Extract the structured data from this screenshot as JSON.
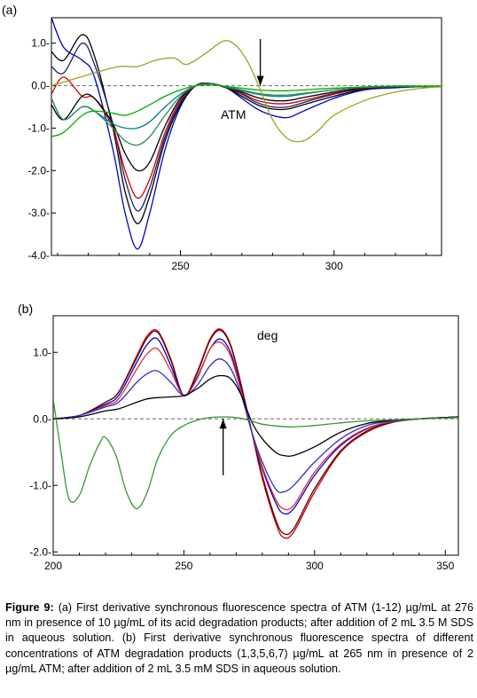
{
  "panels": [
    {
      "label": "(a)",
      "annotation": "ATM",
      "yticks": [
        1.0,
        0.0,
        -1.0,
        -2.0,
        -3.0,
        -4.0
      ],
      "ytick_labels": [
        "1.0-",
        "0.0-",
        "-1.0-",
        "-2.0-",
        "-3.0-",
        "-4.0-"
      ],
      "xticks": [
        250,
        300
      ],
      "xtick_labels": [
        "250",
        "300"
      ]
    },
    {
      "label": "(b)",
      "annotation": "deg",
      "yticks": [
        1.0,
        0.0,
        -1.0,
        -2.0
      ],
      "ytick_labels": [
        "1.0-",
        "0.0-",
        "-1.0-",
        "-2.0-"
      ],
      "xticks": [
        200,
        250,
        300,
        350
      ],
      "xtick_labels": [
        "200",
        "250",
        "300",
        "350"
      ]
    }
  ],
  "caption": {
    "label": "Figure 9:",
    "text": " (a) First derivative synchronous fluorescence spectra of ATM (1-12) µg/mL at 276 nm in presence of 10 µg/mL of its acid degradation products; after addition of 2 mL 3.5 M SDS in aqueous solution. (b) First derivative synchronous fluorescence spectra of different concentrations of ATM degradation products (1,3,5,6,7) µg/mL at 265 nm in presence of 2 µg/mL ATM; after addition of 2 mL 3.5 mM SDS in aqueous solution."
  },
  "chart_data": [
    {
      "type": "line",
      "title": "(a)",
      "xlabel": "",
      "ylabel": "",
      "xlim": [
        208,
        335
      ],
      "ylim": [
        -4.0,
        1.6
      ],
      "grid": false,
      "zero_line": "dashed",
      "arrow": {
        "x": 276,
        "y_from": 1.1,
        "y_to": 0.0,
        "direction": "down"
      },
      "series": [
        {
          "color": "#0000cc",
          "x": [
            208,
            212,
            218,
            222,
            228,
            232,
            236,
            240,
            245,
            250,
            255,
            260,
            265,
            270,
            275,
            280,
            285,
            290,
            300,
            310,
            320,
            330,
            335
          ],
          "y": [
            1.6,
            0.9,
            0.6,
            0.2,
            -1.5,
            -3.0,
            -3.85,
            -3.0,
            -1.5,
            -0.5,
            0.0,
            0.05,
            -0.05,
            -0.3,
            -0.55,
            -0.7,
            -0.75,
            -0.6,
            -0.3,
            -0.1,
            -0.05,
            -0.02,
            -0.02
          ]
        },
        {
          "color": "#000000",
          "x": [
            208,
            212,
            218,
            222,
            228,
            232,
            236,
            240,
            245,
            250,
            255,
            260,
            265,
            270,
            275,
            280,
            285,
            290,
            300,
            310,
            320,
            330,
            335
          ],
          "y": [
            0.8,
            0.6,
            1.2,
            0.7,
            -1.0,
            -2.5,
            -3.25,
            -2.6,
            -1.3,
            -0.45,
            0.0,
            0.05,
            -0.05,
            -0.25,
            -0.45,
            -0.55,
            -0.55,
            -0.45,
            -0.25,
            -0.08,
            -0.03,
            -0.02,
            -0.02
          ]
        },
        {
          "color": "#1a1a6e",
          "x": [
            208,
            212,
            218,
            222,
            228,
            232,
            236,
            240,
            245,
            250,
            255,
            260,
            265,
            270,
            275,
            280,
            285,
            290,
            300,
            310,
            320,
            330,
            335
          ],
          "y": [
            0.45,
            0.3,
            1.0,
            0.5,
            -0.9,
            -2.2,
            -2.95,
            -2.4,
            -1.2,
            -0.4,
            0.0,
            0.05,
            -0.05,
            -0.2,
            -0.4,
            -0.5,
            -0.5,
            -0.4,
            -0.2,
            -0.07,
            -0.03,
            -0.02,
            -0.02
          ]
        },
        {
          "color": "#cc0000",
          "x": [
            208,
            212,
            218,
            222,
            228,
            232,
            236,
            240,
            245,
            250,
            255,
            260,
            265,
            270,
            275,
            280,
            285,
            290,
            300,
            310,
            320,
            330,
            335
          ],
          "y": [
            -0.2,
            0.2,
            -0.25,
            -0.3,
            -1.0,
            -2.0,
            -2.65,
            -2.2,
            -1.1,
            -0.35,
            0.0,
            0.05,
            -0.05,
            -0.18,
            -0.35,
            -0.42,
            -0.42,
            -0.35,
            -0.18,
            -0.06,
            -0.02,
            -0.02,
            -0.02
          ]
        },
        {
          "color": "#000000",
          "x": [
            208,
            212,
            218,
            222,
            228,
            232,
            236,
            240,
            245,
            250,
            255,
            260,
            265,
            270,
            275,
            280,
            285,
            290,
            300,
            310,
            320,
            330,
            335
          ],
          "y": [
            -0.45,
            -0.8,
            -0.25,
            -0.3,
            -0.9,
            -1.6,
            -2.0,
            -1.8,
            -0.95,
            -0.3,
            0.0,
            0.05,
            -0.05,
            -0.15,
            -0.28,
            -0.35,
            -0.35,
            -0.28,
            -0.15,
            -0.05,
            -0.02,
            -0.02,
            -0.02
          ]
        },
        {
          "color": "#008080",
          "x": [
            208,
            212,
            218,
            222,
            228,
            232,
            236,
            240,
            245,
            250,
            255,
            260,
            265,
            270,
            275,
            280,
            285,
            290,
            300,
            310,
            320,
            330,
            335
          ],
          "y": [
            -0.3,
            -0.8,
            -0.5,
            -0.6,
            -0.9,
            -1.0,
            -1.0,
            -0.85,
            -0.5,
            -0.2,
            0.0,
            0.05,
            -0.04,
            -0.12,
            -0.2,
            -0.25,
            -0.25,
            -0.2,
            -0.1,
            -0.04,
            -0.02,
            -0.02,
            -0.02
          ]
        },
        {
          "color": "#2e8b57",
          "x": [
            208,
            212,
            218,
            222,
            228,
            232,
            236,
            240,
            245,
            250,
            255,
            260,
            265,
            270,
            275,
            280,
            285,
            290,
            300,
            310,
            320,
            330,
            335
          ],
          "y": [
            -0.3,
            -0.8,
            -0.5,
            -0.6,
            -1.0,
            -1.3,
            -1.4,
            -1.2,
            -0.7,
            -0.25,
            0.0,
            0.05,
            -0.03,
            -0.1,
            -0.18,
            -0.22,
            -0.22,
            -0.18,
            -0.1,
            -0.04,
            -0.02,
            -0.02,
            -0.02
          ]
        },
        {
          "color": "#00aa00",
          "x": [
            208,
            212,
            218,
            222,
            228,
            232,
            236,
            240,
            245,
            250,
            255,
            260,
            265,
            270,
            275,
            280,
            285,
            290,
            300,
            310,
            320,
            330,
            335
          ],
          "y": [
            -1.2,
            -1.1,
            -0.7,
            -0.6,
            -0.65,
            -0.7,
            -0.6,
            -0.45,
            -0.25,
            -0.1,
            0.0,
            0.02,
            -0.02,
            -0.06,
            -0.1,
            -0.12,
            -0.12,
            -0.1,
            -0.06,
            -0.03,
            -0.01,
            -0.01,
            -0.01
          ]
        },
        {
          "color": "#a0a020",
          "x": [
            208,
            215,
            222,
            230,
            236,
            242,
            248,
            252,
            258,
            264,
            268,
            272,
            276,
            280,
            285,
            290,
            295,
            300,
            310,
            320,
            330,
            335
          ],
          "y": [
            0.0,
            0.15,
            0.3,
            0.45,
            0.45,
            0.6,
            0.65,
            0.5,
            0.75,
            1.05,
            0.95,
            0.55,
            -0.1,
            -0.8,
            -1.25,
            -1.3,
            -1.05,
            -0.7,
            -0.35,
            -0.15,
            -0.05,
            -0.03
          ]
        }
      ]
    },
    {
      "type": "line",
      "title": "(b)",
      "xlabel": "",
      "ylabel": "",
      "xlim": [
        200,
        355
      ],
      "ylim": [
        -2.05,
        1.55
      ],
      "grid": false,
      "zero_line": "dashed",
      "arrow": {
        "x": 265,
        "y_from": -0.85,
        "y_to": 0.0,
        "direction": "up"
      },
      "series": [
        {
          "color": "#cc0000",
          "x": [
            200,
            210,
            220,
            225,
            232,
            236,
            240,
            245,
            250,
            255,
            260,
            264,
            268,
            272,
            276,
            280,
            285,
            288,
            292,
            300,
            310,
            320,
            330,
            340,
            350,
            355
          ],
          "y": [
            0.0,
            0.05,
            0.25,
            0.4,
            0.95,
            1.25,
            1.32,
            0.9,
            0.35,
            0.7,
            1.2,
            1.35,
            1.1,
            0.5,
            -0.2,
            -0.9,
            -1.55,
            -1.78,
            -1.7,
            -1.1,
            -0.5,
            -0.2,
            -0.05,
            0.0,
            0.02,
            0.03
          ]
        },
        {
          "color": "#5a0000",
          "x": [
            200,
            210,
            220,
            225,
            232,
            236,
            240,
            245,
            250,
            255,
            260,
            264,
            268,
            272,
            276,
            280,
            285,
            288,
            292,
            300,
            310,
            320,
            330,
            340,
            350,
            355
          ],
          "y": [
            0.0,
            0.05,
            0.25,
            0.4,
            0.92,
            1.22,
            1.3,
            0.88,
            0.35,
            0.68,
            1.18,
            1.33,
            1.08,
            0.48,
            -0.2,
            -0.85,
            -1.5,
            -1.72,
            -1.65,
            -1.05,
            -0.48,
            -0.18,
            -0.05,
            0.0,
            0.02,
            0.03
          ]
        },
        {
          "color": "#0000cc",
          "x": [
            200,
            210,
            220,
            225,
            232,
            236,
            240,
            245,
            250,
            255,
            260,
            264,
            268,
            272,
            276,
            280,
            285,
            288,
            292,
            300,
            310,
            320,
            330,
            340,
            350,
            355
          ],
          "y": [
            0.0,
            0.05,
            0.22,
            0.35,
            0.85,
            1.12,
            1.2,
            0.8,
            0.35,
            0.62,
            1.05,
            1.2,
            0.98,
            0.42,
            -0.2,
            -0.75,
            -1.25,
            -1.42,
            -1.35,
            -0.85,
            -0.4,
            -0.15,
            -0.04,
            0.0,
            0.02,
            0.03
          ]
        },
        {
          "color": "#e03030",
          "x": [
            200,
            210,
            220,
            225,
            232,
            236,
            240,
            245,
            250,
            255,
            260,
            264,
            268,
            272,
            276,
            280,
            285,
            288,
            292,
            300,
            310,
            320,
            330,
            340,
            350,
            355
          ],
          "y": [
            0.0,
            0.05,
            0.2,
            0.3,
            0.75,
            0.98,
            1.05,
            0.72,
            0.35,
            0.6,
            1.05,
            1.15,
            0.93,
            0.4,
            -0.2,
            -0.72,
            -1.2,
            -1.35,
            -1.3,
            -0.8,
            -0.38,
            -0.14,
            -0.04,
            0.0,
            0.02,
            0.03
          ]
        },
        {
          "color": "#3030c8",
          "x": [
            200,
            210,
            220,
            225,
            232,
            236,
            240,
            245,
            250,
            255,
            260,
            264,
            268,
            272,
            276,
            280,
            285,
            288,
            292,
            300,
            310,
            320,
            330,
            340,
            350,
            355
          ],
          "y": [
            0.0,
            0.05,
            0.18,
            0.25,
            0.55,
            0.68,
            0.72,
            0.55,
            0.35,
            0.5,
            0.8,
            0.9,
            0.75,
            0.35,
            -0.2,
            -0.65,
            -1.05,
            -1.1,
            -1.0,
            -0.65,
            -0.3,
            -0.1,
            -0.03,
            0.0,
            0.02,
            0.03
          ]
        },
        {
          "color": "#000000",
          "x": [
            200,
            210,
            220,
            225,
            232,
            236,
            240,
            245,
            250,
            255,
            260,
            264,
            268,
            272,
            276,
            280,
            285,
            288,
            292,
            300,
            310,
            320,
            330,
            340,
            350,
            355
          ],
          "y": [
            0.0,
            0.03,
            0.12,
            0.15,
            0.25,
            0.3,
            0.32,
            0.33,
            0.35,
            0.45,
            0.6,
            0.65,
            0.6,
            0.35,
            -0.05,
            -0.3,
            -0.5,
            -0.55,
            -0.55,
            -0.42,
            -0.2,
            -0.07,
            -0.02,
            0.0,
            0.02,
            0.03
          ]
        },
        {
          "color": "#339933",
          "x": [
            200,
            203,
            206,
            210,
            214,
            218,
            220,
            224,
            228,
            232,
            236,
            240,
            245,
            250,
            255,
            260,
            265,
            270,
            275,
            280,
            290,
            300,
            310,
            320,
            340,
            355
          ],
          "y": [
            0.3,
            -0.5,
            -1.2,
            -1.15,
            -0.7,
            -0.35,
            -0.28,
            -0.55,
            -1.1,
            -1.35,
            -1.1,
            -0.6,
            -0.25,
            -0.1,
            -0.02,
            0.02,
            0.03,
            0.02,
            -0.02,
            -0.08,
            -0.12,
            -0.1,
            -0.06,
            -0.03,
            0.0,
            0.02
          ]
        }
      ]
    }
  ]
}
